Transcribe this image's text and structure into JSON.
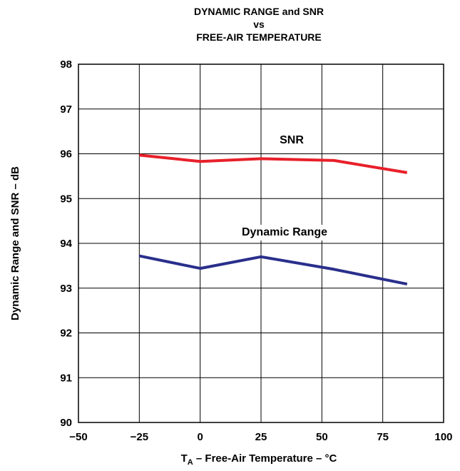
{
  "chart_data": {
    "type": "line",
    "title": [
      "DYNAMIC RANGE and SNR",
      "vs",
      "FREE-AIR TEMPERATURE"
    ],
    "ylabel": "Dynamic Range and SNR – dB",
    "xlabel": {
      "main": "T",
      "sub": "A",
      "rest": " – Free-Air Temperature – °C"
    },
    "xlim": [
      -50,
      100
    ],
    "ylim": [
      90,
      98
    ],
    "xticks": [
      -50,
      -25,
      0,
      25,
      50,
      75,
      100
    ],
    "xtick_labels": [
      "−50",
      "−25",
      "0",
      "25",
      "50",
      "75",
      "100"
    ],
    "yticks": [
      90,
      91,
      92,
      93,
      94,
      95,
      96,
      97,
      98
    ],
    "grid": true,
    "series": [
      {
        "name": "SNR",
        "color": "#e8202a",
        "x": [
          -25,
          0,
          25,
          55,
          85
        ],
        "y": [
          95.97,
          95.83,
          95.89,
          95.85,
          95.58
        ]
      },
      {
        "name": "Dynamic Range",
        "color": "#2a2f8c",
        "x": [
          -25,
          0,
          25,
          55,
          85
        ],
        "y": [
          93.72,
          93.44,
          93.7,
          93.42,
          93.09
        ]
      }
    ]
  }
}
